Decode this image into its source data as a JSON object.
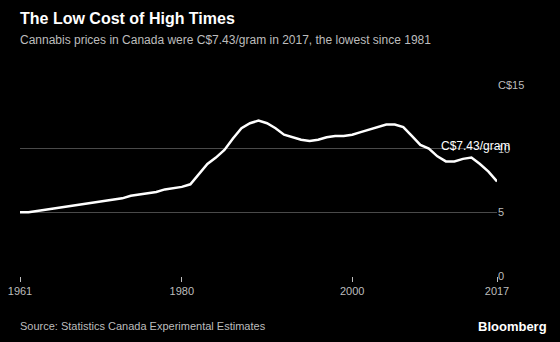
{
  "chart_data": {
    "type": "line",
    "title": "The Low Cost of High Times",
    "subtitle": "Cannabis prices in Canada were C$7.43/gram in 2017, the lowest since 1981",
    "annotation": "C$7.43/gram",
    "source": "Source: Statistics Canada Experimental Estimates",
    "credit": "Bloomberg",
    "x": [
      1961,
      1962,
      1963,
      1964,
      1965,
      1966,
      1967,
      1968,
      1969,
      1970,
      1971,
      1972,
      1973,
      1974,
      1975,
      1976,
      1977,
      1978,
      1979,
      1980,
      1981,
      1982,
      1983,
      1984,
      1985,
      1986,
      1987,
      1988,
      1989,
      1990,
      1991,
      1992,
      1993,
      1994,
      1995,
      1996,
      1997,
      1998,
      1999,
      2000,
      2001,
      2002,
      2003,
      2004,
      2005,
      2006,
      2007,
      2008,
      2009,
      2010,
      2011,
      2012,
      2013,
      2014,
      2015,
      2016,
      2017
    ],
    "values": [
      5.0,
      5.0,
      5.1,
      5.2,
      5.3,
      5.4,
      5.5,
      5.6,
      5.7,
      5.8,
      5.9,
      6.0,
      6.1,
      6.3,
      6.4,
      6.5,
      6.6,
      6.8,
      6.9,
      7.0,
      7.2,
      8.0,
      8.8,
      9.3,
      9.9,
      10.8,
      11.6,
      12.0,
      12.2,
      12.0,
      11.6,
      11.1,
      10.9,
      10.7,
      10.6,
      10.7,
      10.9,
      11.0,
      11.0,
      11.1,
      11.3,
      11.5,
      11.7,
      11.9,
      11.9,
      11.7,
      11.0,
      10.3,
      10.0,
      9.4,
      9.0,
      9.0,
      9.2,
      9.3,
      8.8,
      8.2,
      7.43
    ],
    "color": "#ffffff",
    "xlim": [
      1961,
      2017
    ],
    "xticks": [
      1961,
      1980,
      2000,
      2017
    ],
    "ylim": [
      0,
      15
    ],
    "yticks": [
      0,
      5,
      10,
      {
        "value": 15,
        "label": "C$15"
      }
    ],
    "grid": true
  }
}
